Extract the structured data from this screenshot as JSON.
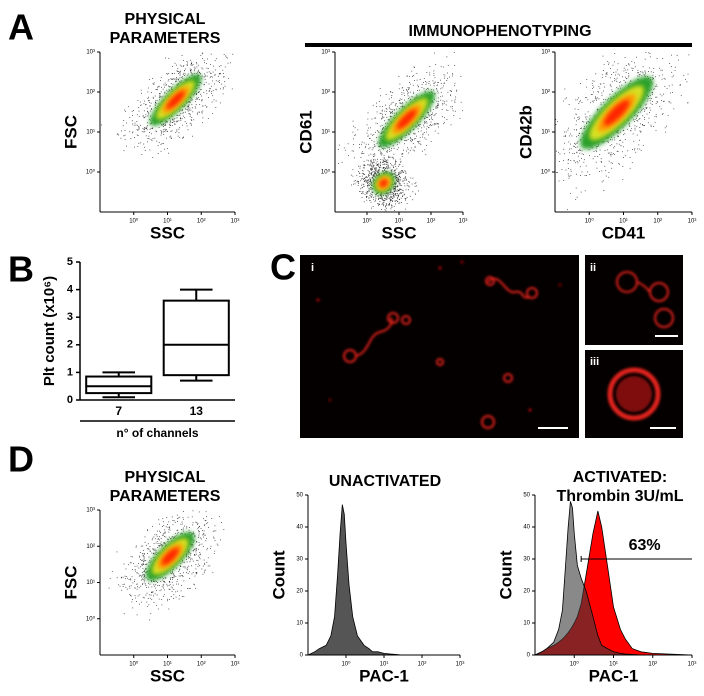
{
  "labels": {
    "panels": [
      "A",
      "B",
      "C",
      "D"
    ],
    "immunophenotyping": "IMMUNOPHENOTYPING",
    "images": [
      "i",
      "ii",
      "iii"
    ]
  },
  "chart_data": [
    {
      "type": "density",
      "title": [
        "PHYSICAL",
        "PARAMETERS"
      ],
      "xlabel": "SSC",
      "ylabel": "FSC",
      "log": true,
      "xlim": [
        0.1,
        1000
      ],
      "ylim": [
        0.1,
        1000
      ],
      "xticks": [
        {
          "value": 1,
          "label": "10⁰"
        },
        {
          "value": 10,
          "label": "10¹"
        },
        {
          "value": 100,
          "label": "10²"
        },
        {
          "value": 1000,
          "label": "10³"
        }
      ],
      "yticks": [
        {
          "value": 1,
          "label": "10⁰"
        },
        {
          "value": 10,
          "label": "10¹"
        },
        {
          "value": 100,
          "label": "10²"
        },
        {
          "value": 1000,
          "label": "10³"
        }
      ]
    },
    {
      "type": "density",
      "xlabel": "SSC",
      "ylabel": "CD61",
      "log": true,
      "xlim": [
        0.1,
        1000
      ],
      "ylim": [
        0.1,
        1000
      ],
      "xticks": [
        {
          "value": 1,
          "label": "10⁰"
        },
        {
          "value": 10,
          "label": "10¹"
        },
        {
          "value": 100,
          "label": "10²"
        },
        {
          "value": 1000,
          "label": "10³"
        }
      ],
      "yticks": [
        {
          "value": 1,
          "label": "10⁰"
        },
        {
          "value": 10,
          "label": "10¹"
        },
        {
          "value": 100,
          "label": "10²"
        },
        {
          "value": 1000,
          "label": "10³"
        }
      ]
    },
    {
      "type": "density",
      "xlabel": "CD41",
      "ylabel": "CD42b",
      "log": true,
      "xlim": [
        0.1,
        1000
      ],
      "ylim": [
        0.1,
        1000
      ],
      "xticks": [
        {
          "value": 1,
          "label": "10⁰"
        },
        {
          "value": 10,
          "label": "10¹"
        },
        {
          "value": 100,
          "label": "10²"
        },
        {
          "value": 1000,
          "label": "10³"
        }
      ],
      "yticks": [
        {
          "value": 1,
          "label": "10⁰"
        },
        {
          "value": 10,
          "label": "10¹"
        },
        {
          "value": 100,
          "label": "10²"
        },
        {
          "value": 1000,
          "label": "10³"
        }
      ]
    },
    {
      "type": "box",
      "ylabel": "Plt count (x10⁶)",
      "xlabel": "n° of channels",
      "categories": [
        "7",
        "13"
      ],
      "min": [
        0.1,
        0.7
      ],
      "q1": [
        0.25,
        0.9
      ],
      "median": [
        0.5,
        2.0
      ],
      "q3": [
        0.85,
        3.6
      ],
      "max": [
        1.0,
        4.0
      ],
      "ylim": [
        0,
        5
      ],
      "yticks": [
        0,
        1,
        2,
        3,
        4,
        5
      ]
    },
    {
      "type": "density",
      "title": [
        "PHYSICAL",
        "PARAMETERS"
      ],
      "xlabel": "SSC",
      "ylabel": "FSC",
      "log": true,
      "xlim": [
        0.1,
        1000
      ],
      "ylim": [
        0.1,
        1000
      ],
      "xticks": [
        {
          "value": 1,
          "label": "10⁰"
        },
        {
          "value": 10,
          "label": "10¹"
        },
        {
          "value": 100,
          "label": "10²"
        },
        {
          "value": 1000,
          "label": "10³"
        }
      ],
      "yticks": [
        {
          "value": 1,
          "label": "10⁰"
        },
        {
          "value": 10,
          "label": "10¹"
        },
        {
          "value": 100,
          "label": "10²"
        },
        {
          "value": 1000,
          "label": "10³"
        }
      ]
    },
    {
      "type": "histogram",
      "title": [
        "UNACTIVATED"
      ],
      "xlabel": "PAC-1",
      "ylabel": "Count",
      "log_x": true,
      "xlim": [
        0.1,
        1000
      ],
      "ylim": [
        0,
        50
      ],
      "xticks": [
        {
          "value": 1,
          "label": "10⁰"
        },
        {
          "value": 10,
          "label": "10¹"
        },
        {
          "value": 100,
          "label": "10²"
        },
        {
          "value": 1000,
          "label": "10³"
        }
      ],
      "yticks": [
        0,
        10,
        20,
        30,
        40,
        50
      ],
      "x": [
        0.1,
        0.15,
        0.2,
        0.3,
        0.4,
        0.5,
        0.6,
        0.7,
        0.8,
        0.9,
        1,
        1.2,
        1.5,
        2,
        3,
        4,
        5,
        7,
        10,
        15,
        20,
        30,
        50,
        100,
        1000
      ],
      "series": [
        {
          "color": "#555555",
          "values": [
            0,
            1,
            2,
            3,
            6,
            12,
            25,
            38,
            47,
            44,
            35,
            22,
            12,
            6,
            3,
            2,
            1,
            1,
            0.5,
            0.3,
            0.2,
            0,
            0,
            0,
            0
          ]
        }
      ]
    },
    {
      "type": "histogram",
      "title": [
        "ACTIVATED:",
        "Thrombin 3U/mL"
      ],
      "xlabel": "PAC-1",
      "ylabel": "Count",
      "log_x": true,
      "xlim": [
        0.1,
        1000
      ],
      "ylim": [
        0,
        50
      ],
      "xticks": [
        {
          "value": 1,
          "label": "10⁰"
        },
        {
          "value": 10,
          "label": "10¹"
        },
        {
          "value": 100,
          "label": "10²"
        },
        {
          "value": 1000,
          "label": "10³"
        }
      ],
      "yticks": [
        0,
        10,
        20,
        30,
        40,
        50
      ],
      "x": [
        0.1,
        0.15,
        0.2,
        0.3,
        0.4,
        0.5,
        0.6,
        0.7,
        0.8,
        0.9,
        1,
        1.2,
        1.5,
        2,
        3,
        4,
        5,
        7,
        10,
        15,
        20,
        30,
        50,
        100,
        1000
      ],
      "series": [
        {
          "color": "#ff0000",
          "values": [
            0,
            1,
            2,
            3,
            4,
            5,
            6,
            7,
            8,
            9,
            10,
            12,
            16,
            25,
            38,
            45,
            40,
            28,
            15,
            8,
            5,
            2,
            1,
            0.5,
            0
          ]
        },
        {
          "color": "#3a3a3a",
          "values": [
            0,
            1,
            2,
            4,
            8,
            14,
            28,
            40,
            48,
            46,
            38,
            28,
            24,
            20,
            12,
            6,
            3,
            2,
            1,
            0.5,
            0.3,
            0.2,
            0,
            0,
            0
          ]
        }
      ],
      "gate": {
        "label": "63%",
        "value": 63,
        "y": 30,
        "x": [
          1.5,
          1000
        ]
      }
    }
  ]
}
